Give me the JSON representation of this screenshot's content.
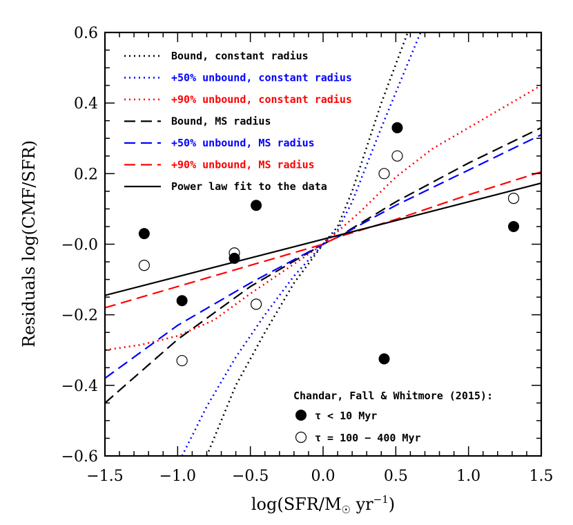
{
  "chart_data": {
    "type": "line",
    "xlabel_parts": [
      "log(SFR/M",
      "☉",
      " yr",
      "−1",
      ")"
    ],
    "ylabel": "Residuals log(CMF/SFR)",
    "xlim": [
      -1.5,
      1.5
    ],
    "ylim": [
      -0.6,
      0.6
    ],
    "xticks": [
      -1.5,
      -1.0,
      -0.5,
      0.0,
      0.5,
      1.0,
      1.5
    ],
    "xtick_labels": [
      "−1.5",
      "−1.0",
      "−0.5",
      "0.0",
      "0.5",
      "1.0",
      "1.5"
    ],
    "yticks": [
      -0.6,
      -0.4,
      -0.2,
      0.0,
      0.2,
      0.4,
      0.6
    ],
    "ytick_labels": [
      "−0.6",
      "−0.4",
      "−0.2",
      "−0.0",
      "0.2",
      "0.4",
      "0.6"
    ],
    "legend_position": "top-left",
    "series": [
      {
        "name": "Bound, constant radius",
        "color": "#000000",
        "style": "dotted",
        "x": [
          -0.8,
          -0.6,
          -0.4,
          -0.2,
          0.0,
          0.1,
          0.2,
          0.4,
          0.6,
          0.8
        ],
        "y": [
          -0.6,
          -0.4,
          -0.25,
          -0.11,
          0.0,
          0.05,
          0.15,
          0.4,
          0.62,
          0.85
        ]
      },
      {
        "name": "+50% unbound, constant radius",
        "color": "#0000ff",
        "style": "dotted",
        "x": [
          -0.97,
          -0.8,
          -0.6,
          -0.4,
          -0.2,
          0.0,
          0.1,
          0.2,
          0.4,
          0.6,
          0.8
        ],
        "y": [
          -0.6,
          -0.46,
          -0.32,
          -0.2,
          -0.09,
          0.0,
          0.04,
          0.12,
          0.33,
          0.53,
          0.73
        ]
      },
      {
        "name": "+90% unbound, constant radius",
        "color": "#ff0000",
        "style": "dotted",
        "x": [
          -1.5,
          -1.25,
          -1.0,
          -0.75,
          -0.5,
          -0.25,
          0.0,
          0.25,
          0.5,
          0.75,
          1.0,
          1.25,
          1.5
        ],
        "y": [
          -0.3,
          -0.285,
          -0.26,
          -0.215,
          -0.14,
          -0.07,
          0.0,
          0.09,
          0.19,
          0.27,
          0.33,
          0.39,
          0.45
        ]
      },
      {
        "name": "Bound, MS radius",
        "color": "#000000",
        "style": "dashed",
        "x": [
          -1.5,
          -1.0,
          -0.5,
          0.0,
          0.1,
          0.5,
          1.0,
          1.5
        ],
        "y": [
          -0.45,
          -0.27,
          -0.12,
          0.0,
          0.02,
          0.12,
          0.23,
          0.33
        ]
      },
      {
        "name": "+50% unbound, MS radius",
        "color": "#0000ff",
        "style": "dashed",
        "x": [
          -1.5,
          -1.0,
          -0.5,
          0.0,
          0.1,
          0.5,
          1.0,
          1.5
        ],
        "y": [
          -0.38,
          -0.23,
          -0.11,
          0.0,
          0.02,
          0.11,
          0.21,
          0.31
        ]
      },
      {
        "name": "+90% unbound, MS radius",
        "color": "#ff0000",
        "style": "dashed",
        "x": [
          -1.5,
          -1.0,
          -0.5,
          0.0,
          0.1,
          0.5,
          1.0,
          1.5
        ],
        "y": [
          -0.18,
          -0.12,
          -0.06,
          0.0,
          0.02,
          0.07,
          0.14,
          0.205
        ]
      },
      {
        "name": "Power law fit to the data",
        "color": "#000000",
        "style": "solid",
        "x": [
          -1.5,
          1.5
        ],
        "y": [
          -0.145,
          0.173
        ]
      }
    ],
    "points": {
      "young": {
        "label": "τ < 10 Myr",
        "x": [
          -1.23,
          -0.97,
          -0.61,
          -0.46,
          0.42,
          0.51,
          1.31
        ],
        "y": [
          0.03,
          -0.16,
          -0.04,
          0.11,
          -0.325,
          0.33,
          0.05
        ]
      },
      "old": {
        "label": "τ = 100 − 400 Myr",
        "x": [
          -1.23,
          -0.97,
          -0.61,
          -0.46,
          0.42,
          0.51,
          1.31
        ],
        "y": [
          -0.06,
          -0.33,
          -0.025,
          -0.17,
          0.2,
          0.25,
          0.13
        ]
      }
    },
    "annotation": "Chandar, Fall & Whitmore (2015):"
  }
}
